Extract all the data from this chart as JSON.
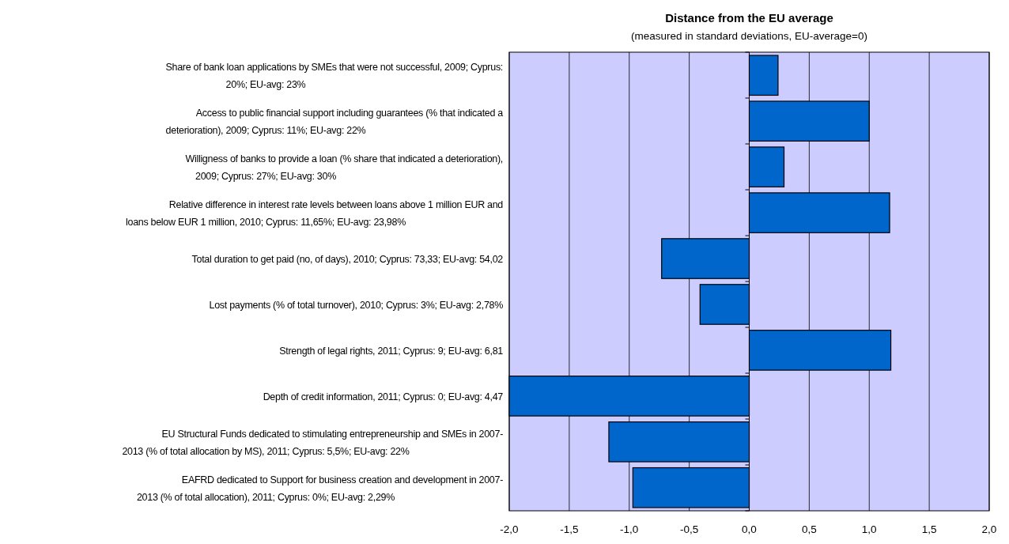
{
  "chart_data": {
    "type": "bar",
    "orientation": "horizontal",
    "title": "Distance from the EU average",
    "subtitle": "(measured in standard deviations, EU-average=0)",
    "categories": [
      "Share of bank loan applications by SMEs that were not successful, 2009; Cyprus:\n20%; EU-avg: 23%",
      "Access to public financial support including guarantees (% that indicated a\ndeterioration), 2009; Cyprus: 11%; EU-avg: 22%",
      "Willigness of banks to provide a loan (% share that indicated a deterioration),\n2009; Cyprus: 27%; EU-avg: 30%",
      "Relative difference in interest rate levels between loans above 1 million EUR and\nloans below EUR 1 million, 2010; Cyprus: 11,65%; EU-avg: 23,98%",
      "Total duration to get paid (no, of days), 2010; Cyprus: 73,33; EU-avg: 54,02",
      "Lost payments (% of total turnover), 2010; Cyprus: 3%; EU-avg: 2,78%",
      "Strength of legal rights, 2011; Cyprus: 9; EU-avg: 6,81",
      "Depth of credit information, 2011; Cyprus: 0; EU-avg: 4,47",
      "EU Structural Funds dedicated to stimulating entrepreneurship and SMEs in 2007-\n2013 (% of total allocation by MS), 2011; Cyprus: 5,5%; EU-avg: 22%",
      "EAFRD dedicated to Support for business creation and development in 2007-\n2013 (% of total allocation), 2011; Cyprus: 0%; EU-avg: 2,29%"
    ],
    "values": [
      0.24,
      1.0,
      0.29,
      1.17,
      -0.73,
      -0.41,
      1.18,
      -2.0,
      -1.17,
      -0.97
    ],
    "color": "#0066cc",
    "xlim": [
      -2,
      2
    ],
    "xticks": [
      {
        "value": -2,
        "label": "-2,0"
      },
      {
        "value": -1.5,
        "label": "-1,5"
      },
      {
        "value": -1,
        "label": "-1,0"
      },
      {
        "value": -0.5,
        "label": "-0,5"
      },
      {
        "value": 0,
        "label": "0,0"
      },
      {
        "value": 0.5,
        "label": "0,5"
      },
      {
        "value": 1,
        "label": "1,0"
      },
      {
        "value": 1.5,
        "label": "1,5"
      },
      {
        "value": 2,
        "label": "2,0"
      }
    ],
    "grid": "x"
  }
}
